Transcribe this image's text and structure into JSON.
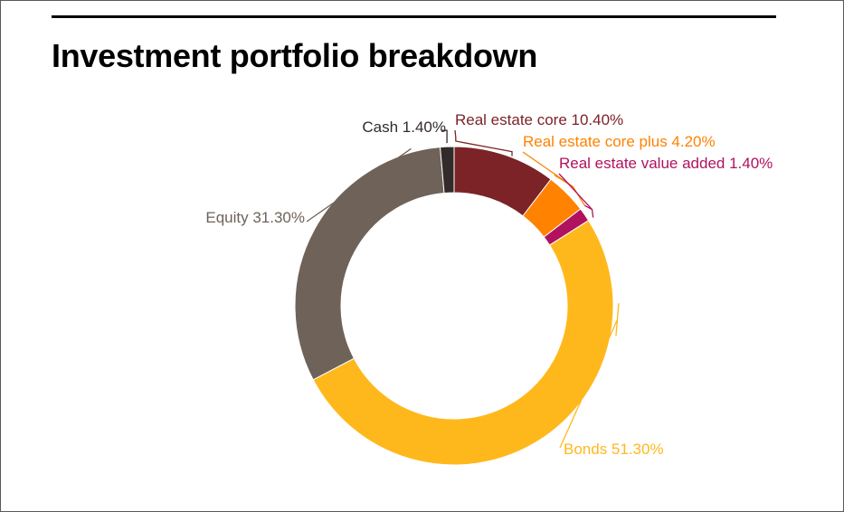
{
  "title": "Investment portfolio breakdown",
  "chart_data": {
    "type": "pie",
    "variant": "donut",
    "title": "Investment portfolio breakdown",
    "slices": [
      {
        "key": "re_core",
        "label": "Real estate core",
        "value": 10.4,
        "display": "Real estate core 10.40%",
        "color": "#7b2327"
      },
      {
        "key": "re_core_plus",
        "label": "Real estate core plus",
        "value": 4.2,
        "display": "Real estate core plus 4.20%",
        "color": "#ff8200"
      },
      {
        "key": "re_value_added",
        "label": "Real estate value added",
        "value": 1.4,
        "display": "Real estate value added 1.40%",
        "color": "#b0125f"
      },
      {
        "key": "bonds",
        "label": "Bonds",
        "value": 51.3,
        "display": "Bonds 51.30%",
        "color": "#ffb81c"
      },
      {
        "key": "equity",
        "label": "Equity",
        "value": 31.3,
        "display": "Equity 31.30%",
        "color": "#6e6259"
      },
      {
        "key": "cash",
        "label": "Cash",
        "value": 1.4,
        "display": "Cash 1.40%",
        "color": "#332b2a"
      }
    ],
    "label_text_colors": {
      "re_core": "#7b2327",
      "re_core_plus": "#ff8200",
      "re_value_added": "#b0125f",
      "bonds": "#ffb81c",
      "equity": "#6e6259",
      "cash": "#332b2a"
    }
  }
}
